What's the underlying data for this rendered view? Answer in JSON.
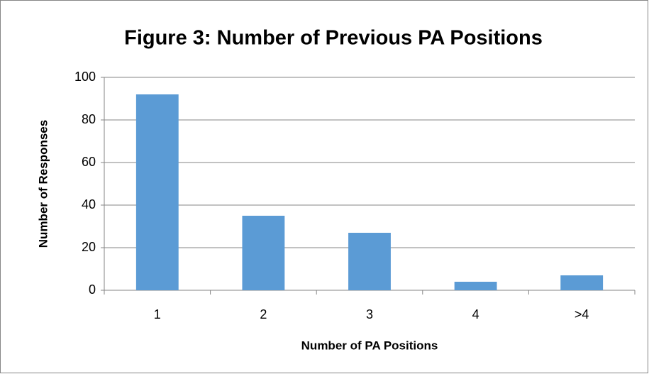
{
  "chart_data": {
    "type": "bar",
    "title": "Figure 3: Number of Previous PA Positions",
    "x_label": "Number of PA Positions",
    "y_label": "Number of Responses",
    "categories": [
      "1",
      "2",
      "3",
      "4",
      ">4"
    ],
    "values": [
      92,
      35,
      27,
      4,
      7
    ],
    "color": "#5b9bd5",
    "ylim": [
      0,
      100
    ],
    "yticks": [
      0,
      20,
      40,
      60,
      80,
      100
    ],
    "grid": true
  }
}
